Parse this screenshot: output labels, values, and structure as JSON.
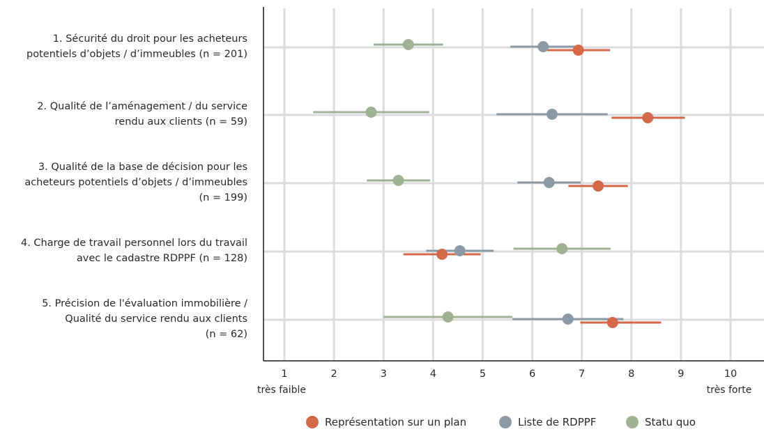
{
  "chart_data": {
    "type": "dot-range",
    "x_range": [
      1,
      10
    ],
    "ticks": [
      "1",
      "2",
      "3",
      "4",
      "5",
      "6",
      "7",
      "8",
      "9",
      "10"
    ],
    "xlabel_low": "très faible",
    "xlabel_high": "très forte",
    "grid": "vertical",
    "legend_position": "bottom",
    "categories": [
      {
        "lines": [
          "1. Sécurité du droit pour les acheteurs",
          "potentiels d’objets / d’immeubles (n = 201)"
        ]
      },
      {
        "lines": [
          "2. Qualité de l’aménagement / du service",
          "rendu aux clients (n = 59)"
        ]
      },
      {
        "lines": [
          "3. Qualité de la base de décision pour les",
          "acheteurs potentiels d’objets / d’immeubles",
          "(n = 199)"
        ]
      },
      {
        "lines": [
          "4. Charge de travail personnel lors du travail",
          "avec le cadastre RDPPF (n = 128)"
        ]
      },
      {
        "lines": [
          "5. Précision de l'évaluation immobilière /",
          "Qualité du service rendu aux clients",
          "(n = 62)"
        ]
      }
    ],
    "series": [
      {
        "name": "Représentation sur un plan",
        "color": "#d4694a",
        "points": [
          {
            "mean": 6.93,
            "low": 6.3,
            "high": 7.57
          },
          {
            "mean": 8.33,
            "low": 7.6,
            "high": 9.08
          },
          {
            "mean": 7.33,
            "low": 6.73,
            "high": 7.93
          },
          {
            "mean": 4.18,
            "low": 3.4,
            "high": 4.96
          },
          {
            "mean": 7.62,
            "low": 6.97,
            "high": 8.6
          }
        ]
      },
      {
        "name": "Liste de RDPPF",
        "color": "#8a9ba6",
        "points": [
          {
            "mean": 6.22,
            "low": 5.56,
            "high": 6.88
          },
          {
            "mean": 6.4,
            "low": 5.28,
            "high": 7.52
          },
          {
            "mean": 6.34,
            "low": 5.7,
            "high": 6.98
          },
          {
            "mean": 4.54,
            "low": 3.86,
            "high": 5.22
          },
          {
            "mean": 6.72,
            "low": 5.6,
            "high": 7.84
          }
        ]
      },
      {
        "name": "Statu quo",
        "color": "#9fb394",
        "points": [
          {
            "mean": 3.5,
            "low": 2.8,
            "high": 4.2
          },
          {
            "mean": 2.75,
            "low": 1.58,
            "high": 3.92
          },
          {
            "mean": 3.3,
            "low": 2.66,
            "high": 3.94
          },
          {
            "mean": 6.6,
            "low": 5.62,
            "high": 7.58
          },
          {
            "mean": 4.3,
            "low": 3.0,
            "high": 5.6
          }
        ]
      }
    ]
  }
}
